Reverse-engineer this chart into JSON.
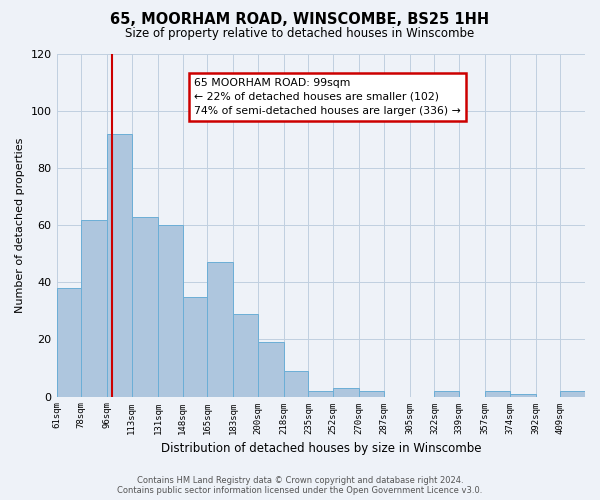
{
  "title": "65, MOORHAM ROAD, WINSCOMBE, BS25 1HH",
  "subtitle": "Size of property relative to detached houses in Winscombe",
  "xlabel": "Distribution of detached houses by size in Winscombe",
  "ylabel": "Number of detached properties",
  "bin_labels": [
    "61sqm",
    "78sqm",
    "96sqm",
    "113sqm",
    "131sqm",
    "148sqm",
    "165sqm",
    "183sqm",
    "200sqm",
    "218sqm",
    "235sqm",
    "252sqm",
    "270sqm",
    "287sqm",
    "305sqm",
    "322sqm",
    "339sqm",
    "357sqm",
    "374sqm",
    "392sqm",
    "409sqm"
  ],
  "bin_edges": [
    61,
    78,
    96,
    113,
    131,
    148,
    165,
    183,
    200,
    218,
    235,
    252,
    270,
    287,
    305,
    322,
    339,
    357,
    374,
    392,
    409
  ],
  "bar_heights": [
    38,
    62,
    92,
    63,
    60,
    35,
    47,
    29,
    19,
    9,
    2,
    3,
    2,
    0,
    0,
    2,
    0,
    2,
    1,
    0,
    2
  ],
  "bar_color": "#aec6de",
  "bar_edge_color": "#6baed6",
  "vline_x": 99,
  "vline_color": "#cc0000",
  "ylim": [
    0,
    120
  ],
  "yticks": [
    0,
    20,
    40,
    60,
    80,
    100,
    120
  ],
  "annotation_text": "65 MOORHAM ROAD: 99sqm\n← 22% of detached houses are smaller (102)\n74% of semi-detached houses are larger (336) →",
  "annotation_box_color": "#ffffff",
  "annotation_box_edge": "#cc0000",
  "footer_line1": "Contains HM Land Registry data © Crown copyright and database right 2024.",
  "footer_line2": "Contains public sector information licensed under the Open Government Licence v3.0.",
  "bg_color": "#eef2f8"
}
